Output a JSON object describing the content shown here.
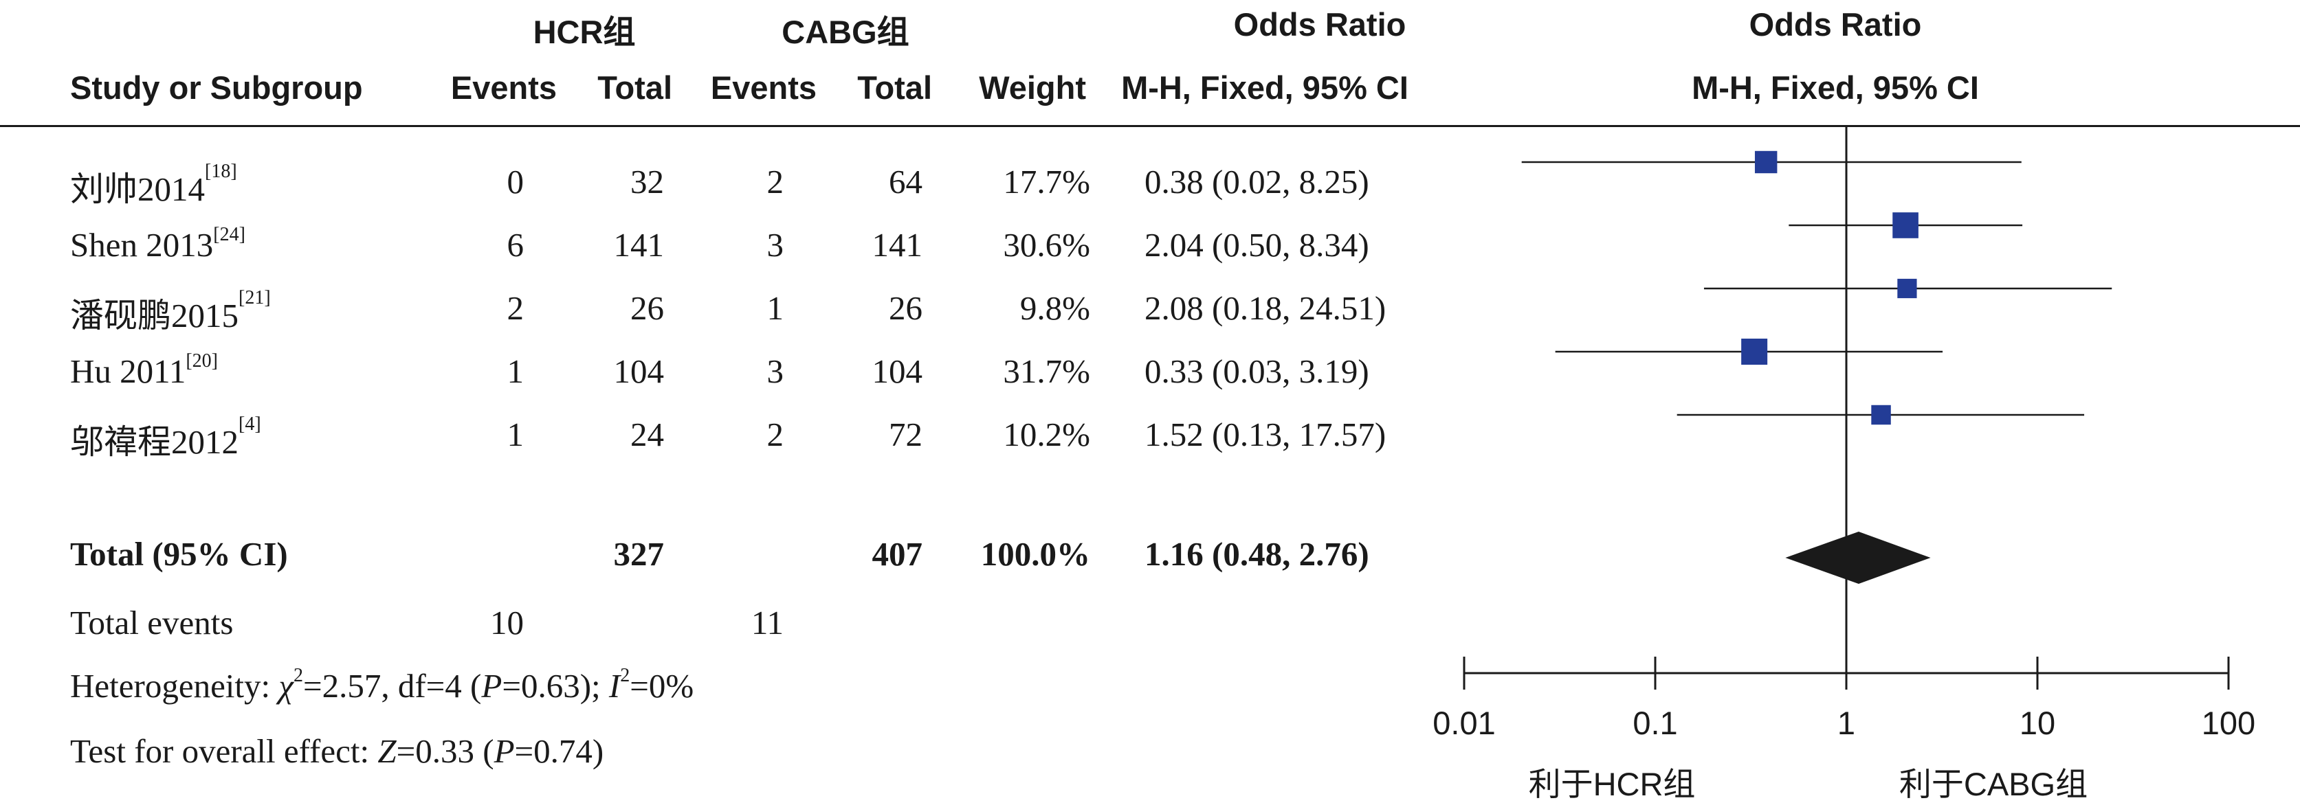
{
  "headers": {
    "group1": "HCR组",
    "group2": "CABG组",
    "or1": "Odds Ratio",
    "or2": "Odds Ratio",
    "study": "Study or Subgroup",
    "events1": "Events",
    "total1": "Total",
    "events2": "Events",
    "total2": "Total",
    "weight": "Weight",
    "method1": "M-H, Fixed, 95% CI",
    "method2": "M-H, Fixed, 95% CI"
  },
  "studies": [
    {
      "name": "刘帅2014",
      "ref": "[18]",
      "e1": "0",
      "t1": "32",
      "e2": "2",
      "t2": "64",
      "weight": "17.7%",
      "ci_text": "0.38 (0.02, 8.25)"
    },
    {
      "name": "Shen 2013",
      "ref": "[24]",
      "e1": "6",
      "t1": "141",
      "e2": "3",
      "t2": "141",
      "weight": "30.6%",
      "ci_text": "2.04 (0.50, 8.34)"
    },
    {
      "name": "潘砚鹏2015",
      "ref": "[21]",
      "e1": "2",
      "t1": "26",
      "e2": "1",
      "t2": "26",
      "weight": "9.8%",
      "ci_text": "2.08 (0.18, 24.51)"
    },
    {
      "name": "Hu 2011",
      "ref": "[20]",
      "e1": "1",
      "t1": "104",
      "e2": "3",
      "t2": "104",
      "weight": "31.7%",
      "ci_text": "0.33 (0.03, 3.19)"
    },
    {
      "name": "邬禕程2012",
      "ref": "[4]",
      "e1": "1",
      "t1": "24",
      "e2": "2",
      "t2": "72",
      "weight": "10.2%",
      "ci_text": "1.52 (0.13, 17.57)"
    }
  ],
  "total": {
    "label": "Total (95% CI)",
    "t1": "327",
    "t2": "407",
    "weight": "100.0%",
    "ci_text": "1.16 (0.48, 2.76)"
  },
  "total_events": {
    "label": "Total events",
    "e1": "10",
    "e2": "11"
  },
  "heterogeneity": {
    "prefix": "Heterogeneity: ",
    "chi_sym": "χ",
    "chi_rest": "=2.57, df=4 (",
    "p_sym": "P",
    "p_rest": "=0.63); ",
    "i_sym": "I",
    "i_rest": "=0%"
  },
  "overall": {
    "prefix": "Test for overall effect: ",
    "z_sym": "Z",
    "z_rest": "=0.33 (",
    "p_sym": "P",
    "p_rest": "=0.74)"
  },
  "chart_data": {
    "type": "scatter",
    "scale": "log",
    "xlim": [
      0.01,
      100
    ],
    "ticks": [
      0.01,
      0.1,
      1,
      10,
      100
    ],
    "tick_labels": [
      "0.01",
      "0.1",
      "1",
      "10",
      "100"
    ],
    "reference_line": 1,
    "xlabel_left": "利于HCR组",
    "xlabel_right": "利于CABG组",
    "studies": [
      {
        "or": 0.38,
        "lower": 0.02,
        "upper": 8.25,
        "weight": 17.7
      },
      {
        "or": 2.04,
        "lower": 0.5,
        "upper": 8.34,
        "weight": 30.6
      },
      {
        "or": 2.08,
        "lower": 0.18,
        "upper": 24.51,
        "weight": 9.8
      },
      {
        "or": 0.33,
        "lower": 0.03,
        "upper": 3.19,
        "weight": 31.7
      },
      {
        "or": 1.52,
        "lower": 0.13,
        "upper": 17.57,
        "weight": 10.2
      }
    ],
    "pooled": {
      "or": 1.16,
      "lower": 0.48,
      "upper": 2.76
    },
    "marker_color": "#233c96",
    "diamond_color": "#1a1a1a"
  }
}
